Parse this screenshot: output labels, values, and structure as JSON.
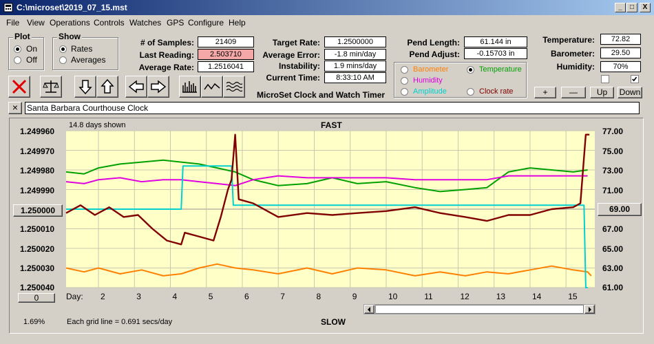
{
  "window": {
    "title": "C:\\microset\\2019_07_15.mst",
    "controls": {
      "minimize": "_",
      "maximize": "□",
      "close": "X"
    }
  },
  "menu": [
    "File",
    "View",
    "Operations",
    "Controls",
    "Watches",
    "GPS",
    "Configure",
    "Help"
  ],
  "plot_group": {
    "title": "Plot",
    "options": [
      "On",
      "Off"
    ],
    "selected": "On"
  },
  "show_group": {
    "title": "Show",
    "options": [
      "Rates",
      "Averages"
    ],
    "selected": "Rates"
  },
  "stats": {
    "samples_label": "# of Samples:",
    "samples": "21409",
    "last_label": "Last Reading:",
    "last": "2.503710",
    "avg_label": "Average Rate:",
    "avg": "1.2516041",
    "target_label": "Target Rate:",
    "target": "1.2500000",
    "error_label": "Average Error:",
    "error": "-1.8 min/day",
    "instab_label": "Instability:",
    "instab": "1.9 mins/day",
    "time_label": "Current Time:",
    "time": "8:33:10 AM",
    "pend_len_label": "Pend Length:",
    "pend_len": "61.144 in",
    "pend_adj_label": "Pend Adjust:",
    "pend_adj": "-0.15703 in",
    "temp_label": "Temperature:",
    "temp": "72.82",
    "baro_label": "Barometer:",
    "baro": "29.50",
    "hum_label": "Humidity:",
    "hum": "70%"
  },
  "app_caption": "MicroSet Clock and Watch Timer",
  "series_group": {
    "options": [
      {
        "label": "Barometer",
        "color": "#ff8000"
      },
      {
        "label": "Temperature",
        "color": "#00a000"
      },
      {
        "label": "Humidity",
        "color": "#e000e0"
      },
      {
        "label": "Amplitude",
        "color": "#00d0d0"
      },
      {
        "label": "Clock rate",
        "color": "#800000"
      }
    ],
    "selected": "Temperature"
  },
  "adjust_buttons": {
    "plus": "+",
    "minus": "—",
    "up": "Up",
    "down": "Down"
  },
  "toolbar_icons": [
    "clear-icon",
    "balance-icon",
    "arrow-down-icon",
    "arrow-up-icon",
    "arrow-left-icon",
    "arrow-right-icon",
    "bar-graph-icon",
    "wave-icon",
    "multi-wave-icon"
  ],
  "description": {
    "close": "×",
    "value": "Santa Barbara Courthouse Clock"
  },
  "chart_meta": {
    "days_shown": "14.8 days shown",
    "top_label": "FAST",
    "bottom_label": "SLOW",
    "grid_note": "Each grid line = 0.691 secs/day",
    "percent": "1.69%",
    "center_button": "1.250000",
    "right_button": "69.00",
    "zero_button": "0",
    "day_label": "Day:"
  },
  "chart_data": {
    "type": "line",
    "x_label": "Day:",
    "x_ticks": [
      "2",
      "3",
      "4",
      "5",
      "6",
      "7",
      "8",
      "9",
      "10",
      "11",
      "12",
      "13",
      "14",
      "15"
    ],
    "y_left_ticks": [
      "1.249960",
      "1.249970",
      "1.249980",
      "1.249990",
      "1.250010",
      "1.250020",
      "1.250030",
      "1.250040"
    ],
    "y_left_range": [
      1.24996,
      1.25004
    ],
    "y_right_ticks": [
      "77.00",
      "75.00",
      "73.00",
      "71.00",
      "67.00",
      "65.00",
      "63.00",
      "61.00"
    ],
    "y_right_range": [
      61,
      77
    ],
    "x_range": [
      1.1,
      15.8
    ],
    "grid": true,
    "series": [
      {
        "name": "Temperature",
        "color": "#00a000",
        "x": [
          1.1,
          1.6,
          2.0,
          2.6,
          3.2,
          3.8,
          4.3,
          4.8,
          5.3,
          5.8,
          6.3,
          7.0,
          7.8,
          8.5,
          9.2,
          10.0,
          10.8,
          11.5,
          12.2,
          12.8,
          13.4,
          14.0,
          14.6,
          15.2,
          15.6
        ],
        "y": [
          1.249981,
          1.249982,
          1.249979,
          1.249977,
          1.249976,
          1.249975,
          1.249976,
          1.249977,
          1.249979,
          1.249981,
          1.249985,
          1.249988,
          1.249987,
          1.249984,
          1.249987,
          1.249986,
          1.249989,
          1.249991,
          1.24999,
          1.249989,
          1.249981,
          1.249979,
          1.24998,
          1.249981,
          1.24998
        ]
      },
      {
        "name": "Humidity",
        "color": "#e000e0",
        "x": [
          1.1,
          1.6,
          2.0,
          2.6,
          3.2,
          3.8,
          4.3,
          4.8,
          5.3,
          5.8,
          6.3,
          7.0,
          7.8,
          8.5,
          9.2,
          10.0,
          10.8,
          11.5,
          12.2,
          12.8,
          13.4,
          14.0,
          14.6,
          15.2,
          15.6
        ],
        "y": [
          1.249986,
          1.249987,
          1.249985,
          1.249984,
          1.249986,
          1.249985,
          1.249985,
          1.249986,
          1.249987,
          1.249988,
          1.249985,
          1.249983,
          1.249984,
          1.249984,
          1.249984,
          1.249984,
          1.249985,
          1.249985,
          1.249985,
          1.249985,
          1.249983,
          1.249983,
          1.249983,
          1.249983,
          1.249983
        ]
      },
      {
        "name": "Barometer",
        "color": "#ff8000",
        "x": [
          1.1,
          1.6,
          2.0,
          2.6,
          3.2,
          3.8,
          4.3,
          4.8,
          5.3,
          5.8,
          6.3,
          7.0,
          7.8,
          8.5,
          9.2,
          10.0,
          10.8,
          11.5,
          12.2,
          12.8,
          13.4,
          14.0,
          14.6,
          15.2,
          15.6,
          15.7
        ],
        "y": [
          1.25003,
          1.250032,
          1.25003,
          1.250033,
          1.250031,
          1.250034,
          1.250033,
          1.25003,
          1.250028,
          1.25003,
          1.250031,
          1.250033,
          1.25003,
          1.250033,
          1.25003,
          1.250031,
          1.250034,
          1.250032,
          1.250034,
          1.250032,
          1.250033,
          1.250031,
          1.250029,
          1.250031,
          1.250032,
          1.250034
        ]
      },
      {
        "name": "Amplitude",
        "color": "#00d0d0",
        "x": [
          1.1,
          4.3,
          4.35,
          5.7,
          5.75,
          15.5,
          15.55,
          15.6
        ],
        "y": [
          1.25,
          1.25,
          1.249978,
          1.249978,
          1.249998,
          1.249998,
          1.25004,
          1.25004
        ]
      },
      {
        "name": "Clock rate",
        "color": "#800000",
        "x": [
          1.1,
          1.5,
          1.9,
          2.3,
          2.7,
          3.1,
          3.5,
          3.9,
          4.3,
          4.4,
          4.8,
          5.2,
          5.4,
          5.6,
          5.7,
          5.8,
          5.9,
          6.3,
          7.0,
          7.8,
          8.5,
          9.2,
          10.0,
          10.8,
          11.5,
          12.2,
          12.8,
          13.4,
          14.0,
          14.6,
          15.2,
          15.4,
          15.55,
          15.65
        ],
        "y": [
          1.250002,
          1.249998,
          1.250003,
          1.249999,
          1.250004,
          1.250003,
          1.25001,
          1.250016,
          1.250018,
          1.250012,
          1.250014,
          1.250016,
          1.250004,
          1.24999,
          1.249985,
          1.249962,
          1.249995,
          1.249997,
          1.250004,
          1.250002,
          1.250003,
          1.250002,
          1.250001,
          1.249999,
          1.250002,
          1.250004,
          1.250006,
          1.250003,
          1.250003,
          1.25,
          1.249999,
          1.249997,
          1.249962,
          1.249962
        ]
      }
    ]
  }
}
